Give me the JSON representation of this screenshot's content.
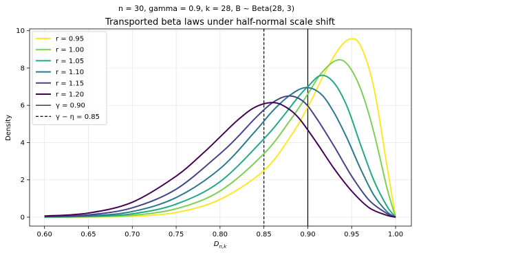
{
  "chart_data": {
    "type": "line",
    "suptitle": "n = 30, gamma = 0.9, k = 28, B ~ Beta(28, 3)",
    "title": "Transported beta laws under half-normal scale shift",
    "xlabel": "D_{n,k}",
    "ylabel": "Density",
    "xlim": [
      0.583,
      1.018
    ],
    "ylim": [
      -0.48,
      10.1
    ],
    "x_ticks": [
      "0.60",
      "0.65",
      "0.70",
      "0.75",
      "0.80",
      "0.85",
      "0.90",
      "0.95",
      "1.00"
    ],
    "y_ticks": [
      "0",
      "2",
      "4",
      "6",
      "8",
      "10"
    ],
    "grid": true,
    "legend_position": "top-left",
    "series": [
      {
        "name": "r = 0.95",
        "color": "#fde725",
        "x": [
          0.6,
          0.65,
          0.7,
          0.75,
          0.8,
          0.85,
          0.88,
          0.9,
          0.92,
          0.935,
          0.948,
          0.96,
          0.975,
          0.99,
          1.0
        ],
        "y": [
          0.0,
          0.01,
          0.05,
          0.25,
          0.95,
          2.5,
          4.3,
          5.9,
          7.8,
          9.0,
          9.55,
          9.2,
          7.0,
          2.8,
          0.0
        ]
      },
      {
        "name": "r = 1.00",
        "color": "#7ad151",
        "x": [
          0.6,
          0.65,
          0.7,
          0.75,
          0.8,
          0.85,
          0.88,
          0.9,
          0.915,
          0.932,
          0.945,
          0.96,
          0.975,
          0.99,
          1.0
        ],
        "y": [
          0.0,
          0.02,
          0.1,
          0.45,
          1.4,
          3.4,
          5.2,
          6.6,
          7.7,
          8.4,
          8.2,
          6.9,
          4.6,
          1.6,
          0.0
        ]
      },
      {
        "name": "r = 1.05",
        "color": "#22a884",
        "x": [
          0.6,
          0.65,
          0.7,
          0.75,
          0.8,
          0.85,
          0.87,
          0.89,
          0.9,
          0.915,
          0.93,
          0.945,
          0.96,
          0.975,
          0.99,
          1.0
        ],
        "y": [
          0.01,
          0.04,
          0.18,
          0.7,
          1.9,
          4.2,
          5.3,
          6.5,
          7.0,
          7.6,
          7.2,
          5.9,
          3.9,
          2.0,
          0.6,
          0.0
        ]
      },
      {
        "name": "r = 1.10",
        "color": "#2a788e",
        "x": [
          0.6,
          0.65,
          0.7,
          0.75,
          0.8,
          0.84,
          0.86,
          0.88,
          0.898,
          0.915,
          0.93,
          0.945,
          0.96,
          0.975,
          0.99,
          1.0
        ],
        "y": [
          0.02,
          0.07,
          0.3,
          1.05,
          2.6,
          4.6,
          5.7,
          6.55,
          6.95,
          6.6,
          5.6,
          4.2,
          2.6,
          1.2,
          0.3,
          0.0
        ]
      },
      {
        "name": "r = 1.15",
        "color": "#414487",
        "x": [
          0.6,
          0.65,
          0.7,
          0.75,
          0.8,
          0.82,
          0.84,
          0.86,
          0.878,
          0.895,
          0.91,
          0.93,
          0.95,
          0.97,
          0.99,
          1.0
        ],
        "y": [
          0.03,
          0.12,
          0.5,
          1.5,
          3.4,
          4.3,
          5.3,
          6.15,
          6.5,
          6.2,
          5.3,
          3.8,
          2.2,
          0.9,
          0.2,
          0.0
        ]
      },
      {
        "name": "r = 1.20",
        "color": "#440154",
        "x": [
          0.6,
          0.65,
          0.7,
          0.75,
          0.78,
          0.8,
          0.82,
          0.84,
          0.86,
          0.875,
          0.89,
          0.91,
          0.93,
          0.95,
          0.97,
          0.99,
          1.0
        ],
        "y": [
          0.06,
          0.22,
          0.8,
          2.2,
          3.4,
          4.3,
          5.2,
          5.9,
          6.15,
          5.9,
          5.3,
          4.0,
          2.6,
          1.4,
          0.5,
          0.1,
          0.0
        ]
      }
    ],
    "vlines": [
      {
        "name": "γ = 0.90",
        "x": 0.9,
        "style": "solid",
        "color": "#000000"
      },
      {
        "name": "γ − η = 0.85",
        "x": 0.85,
        "style": "dashed",
        "color": "#000000"
      }
    ]
  }
}
